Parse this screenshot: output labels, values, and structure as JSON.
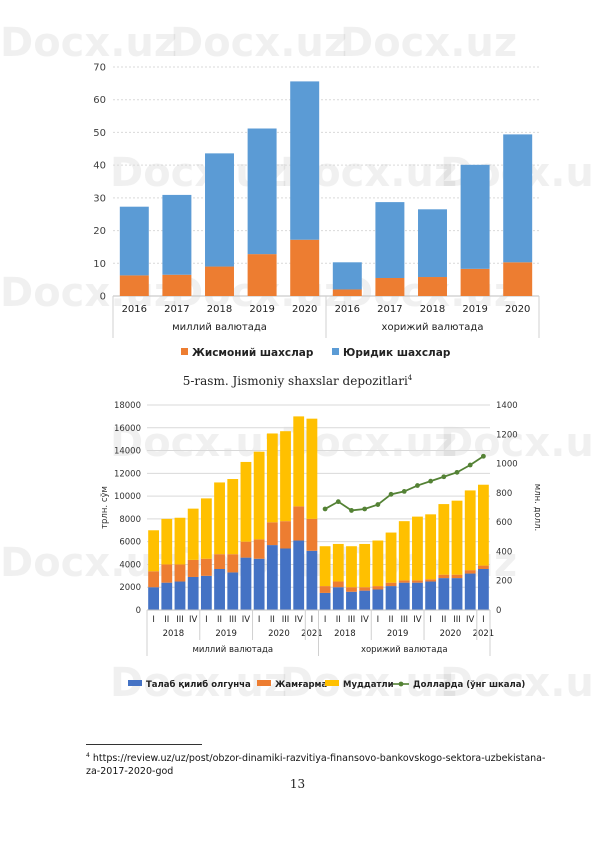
{
  "watermark": "Docx.uz",
  "caption": {
    "text": "5-rasm. Jismoniy shaxslar depozitlari",
    "note": "4"
  },
  "footnote": {
    "marker": "4",
    "text": "https://review.uz/uz/post/obzor-dinamiki-razvitiya-finansovo-bankovskogo-sektora-uzbekistana-za-2017-2020-god"
  },
  "page_number": "13",
  "chart_data": [
    {
      "type": "bar",
      "stacked": true,
      "title": "",
      "ylim": [
        0,
        70
      ],
      "yticks": [
        "0",
        "10",
        "20",
        "30",
        "40",
        "50",
        "60",
        "70"
      ],
      "grid": true,
      "legend_position": "bottom",
      "groups": [
        {
          "label": "миллий валютада",
          "categories": [
            "2016",
            "2017",
            "2018",
            "2019",
            "2020"
          ]
        },
        {
          "label": "хорижий валютада",
          "categories": [
            "2016",
            "2017",
            "2018",
            "2019",
            "2020"
          ]
        }
      ],
      "series": [
        {
          "name": "Жисмоний шахслар",
          "color": "#ED7D31",
          "values": [
            6.3,
            6.5,
            9.0,
            12.8,
            17.2,
            2.0,
            5.5,
            5.8,
            8.3,
            10.3
          ]
        },
        {
          "name": "Юридик шахслар",
          "color": "#5B9BD5",
          "values": [
            21.0,
            24.4,
            34.6,
            38.4,
            48.4,
            8.3,
            23.2,
            20.7,
            31.8,
            39.1
          ]
        }
      ]
    },
    {
      "type": "bar",
      "stacked": true,
      "title": "",
      "ylabel": "трлн. сўм",
      "y2label": "млн. долл.",
      "ylim": [
        0,
        18000
      ],
      "y2lim": [
        0,
        1400
      ],
      "yticks": [
        "0",
        "2000",
        "4000",
        "6000",
        "8000",
        "10000",
        "12000",
        "14000",
        "16000",
        "18000"
      ],
      "y2ticks": [
        "0",
        "200",
        "400",
        "600",
        "800",
        "1000",
        "1200",
        "1400"
      ],
      "grid": true,
      "legend_position": "bottom",
      "groups": [
        {
          "label": "миллий валютада",
          "years": [
            {
              "year": "2018",
              "quarters": [
                "I",
                "II",
                "III",
                "IV"
              ]
            },
            {
              "year": "2019",
              "quarters": [
                "I",
                "II",
                "III",
                "IV"
              ]
            },
            {
              "year": "2020",
              "quarters": [
                "I",
                "II",
                "III",
                "IV"
              ]
            },
            {
              "year": "2021",
              "quarters": [
                "I"
              ]
            }
          ]
        },
        {
          "label": "хорижий валютада",
          "years": [
            {
              "year": "2018",
              "quarters": [
                "I",
                "II",
                "III",
                "IV"
              ]
            },
            {
              "year": "2019",
              "quarters": [
                "I",
                "II",
                "III",
                "IV"
              ]
            },
            {
              "year": "2020",
              "quarters": [
                "I",
                "II",
                "III",
                "IV"
              ]
            },
            {
              "year": "2021",
              "quarters": [
                "I"
              ]
            }
          ]
        }
      ],
      "series": [
        {
          "name": "Талаб қилиб олгунча",
          "color": "#4472C4",
          "values": [
            2000,
            2400,
            2500,
            2900,
            3000,
            3600,
            3300,
            4600,
            4500,
            5700,
            5400,
            6100,
            5200,
            1500,
            2000,
            1600,
            1700,
            1800,
            2100,
            2400,
            2400,
            2500,
            2800,
            2800,
            3200,
            3600
          ]
        },
        {
          "name": "Жамғарма",
          "color": "#ED7D31",
          "values": [
            1400,
            1600,
            1500,
            1500,
            1500,
            1300,
            1600,
            1400,
            1700,
            2000,
            2400,
            3000,
            2800,
            600,
            500,
            400,
            300,
            300,
            300,
            200,
            200,
            200,
            300,
            300,
            300,
            300
          ]
        },
        {
          "name": "Муддатли",
          "color": "#FFC000",
          "values": [
            3600,
            4000,
            4100,
            4500,
            5300,
            6300,
            6600,
            7000,
            7700,
            7800,
            7900,
            7900,
            8800,
            3500,
            3300,
            3600,
            3800,
            4000,
            4400,
            5200,
            5600,
            5700,
            6200,
            6500,
            7000,
            7100
          ]
        },
        {
          "name": "Долларда (ўнг шкала)",
          "color": "#548235",
          "axis": "right",
          "values": [
            690,
            740,
            680,
            690,
            720,
            790,
            810,
            850,
            880,
            910,
            940,
            990,
            1050
          ]
        }
      ]
    }
  ]
}
